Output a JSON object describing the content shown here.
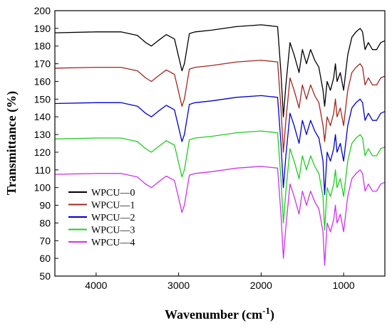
{
  "chart_data": {
    "type": "line",
    "xlabel": "Wavenumber (cm",
    "xlabel_sup": "-1",
    "xlabel_close": ")",
    "ylabel": "Transmittance (%)",
    "xlim": [
      4500,
      500
    ],
    "ylim": [
      50,
      200
    ],
    "x_reversed": true,
    "xticks": [
      4000,
      3000,
      2000,
      1000
    ],
    "yticks": [
      50,
      60,
      70,
      80,
      90,
      100,
      110,
      120,
      130,
      140,
      150,
      160,
      170,
      180,
      190,
      200
    ],
    "legend_position": "bottom-left",
    "grid": false,
    "x": [
      4500,
      4000,
      3700,
      3500,
      3400,
      3330,
      3250,
      3150,
      3050,
      2960,
      2930,
      2870,
      2800,
      2600,
      2300,
      2000,
      1800,
      1760,
      1730,
      1700,
      1650,
      1600,
      1540,
      1500,
      1450,
      1400,
      1350,
      1300,
      1250,
      1230,
      1200,
      1160,
      1120,
      1100,
      1080,
      1040,
      1000,
      950,
      900,
      850,
      800,
      770,
      740,
      700,
      650,
      600,
      550,
      500
    ],
    "series": [
      {
        "name": "WPCU—0",
        "color": "#000000",
        "values": [
          187.5,
          188,
          188,
          186,
          182,
          180,
          183,
          186.5,
          184,
          166,
          170,
          187,
          188,
          189,
          191,
          192,
          191,
          165,
          140,
          158,
          182,
          175,
          165,
          178,
          170,
          178,
          172,
          168,
          155,
          146,
          160,
          155,
          162,
          170,
          160,
          165,
          155,
          175,
          185,
          188,
          190,
          188,
          178,
          182,
          178,
          178,
          182,
          183
        ]
      },
      {
        "name": "WPCU—1",
        "color": "#a0281e",
        "values": [
          167.5,
          168,
          168,
          166,
          162,
          160,
          163,
          166.5,
          164,
          146,
          150,
          167,
          168,
          169,
          171,
          172,
          171,
          145,
          120,
          138,
          162,
          155,
          145,
          158,
          150,
          158,
          152,
          148,
          135,
          126,
          140,
          135,
          142,
          150,
          140,
          145,
          135,
          155,
          165,
          168,
          170,
          168,
          158,
          162,
          158,
          158,
          162,
          163
        ]
      },
      {
        "name": "WPCU—2",
        "color": "#0000cc",
        "values": [
          147.5,
          148,
          148,
          146,
          142,
          140,
          143,
          146.5,
          144,
          126,
          130,
          147,
          148,
          149,
          151,
          152,
          151,
          125,
          100,
          118,
          142,
          135,
          125,
          138,
          130,
          138,
          132,
          128,
          115,
          96,
          120,
          115,
          122,
          130,
          120,
          125,
          115,
          135,
          145,
          148,
          150,
          148,
          138,
          142,
          138,
          138,
          142,
          143
        ]
      },
      {
        "name": "WPCU—3",
        "color": "#22cc22",
        "values": [
          127.5,
          128,
          128,
          126,
          122,
          120,
          123,
          126.5,
          124,
          106,
          110,
          127,
          128,
          129,
          131,
          132,
          131,
          105,
          80,
          98,
          122,
          115,
          105,
          118,
          110,
          118,
          112,
          108,
          95,
          76,
          100,
          95,
          102,
          110,
          100,
          105,
          95,
          115,
          125,
          128,
          130,
          128,
          118,
          122,
          118,
          118,
          122,
          123
        ]
      },
      {
        "name": "WPCU—4",
        "color": "#cc33ee",
        "values": [
          107.5,
          108,
          108,
          106,
          102,
          100,
          103,
          106.5,
          104,
          86,
          90,
          107,
          108,
          109,
          111,
          112,
          111,
          85,
          60,
          78,
          102,
          95,
          85,
          98,
          90,
          98,
          92,
          88,
          75,
          56,
          80,
          75,
          82,
          90,
          80,
          85,
          75,
          95,
          105,
          108,
          110,
          108,
          98,
          102,
          98,
          98,
          102,
          103
        ]
      }
    ]
  }
}
